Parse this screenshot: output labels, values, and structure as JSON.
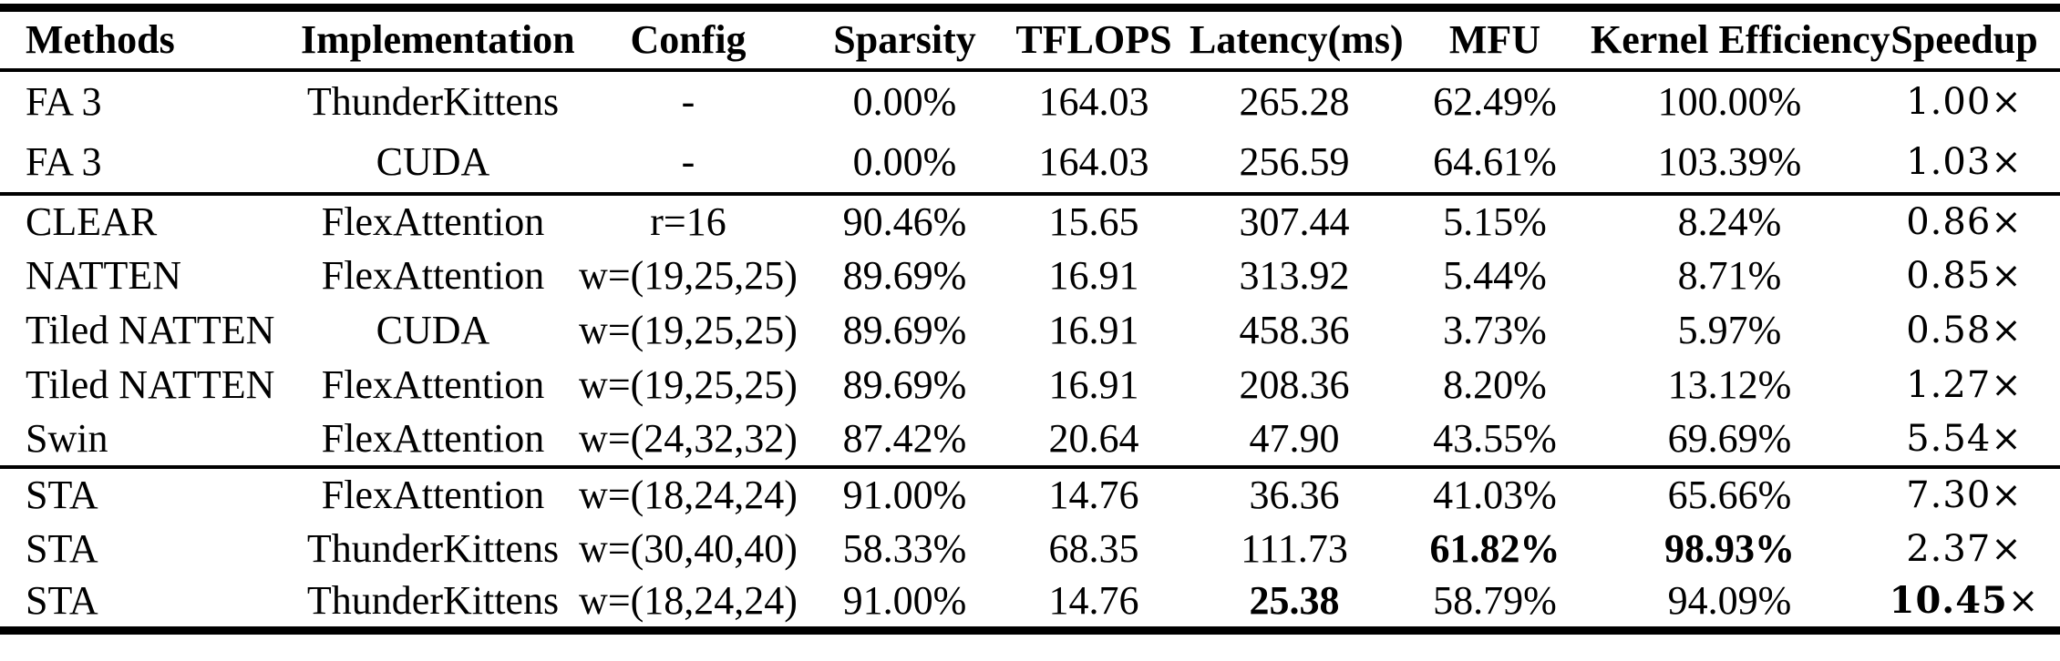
{
  "table": {
    "columns": [
      {
        "label": "Methods",
        "align": "left"
      },
      {
        "label": "Implementation",
        "align": "center"
      },
      {
        "label": "Config",
        "align": "center"
      },
      {
        "label": "Sparsity",
        "align": "center"
      },
      {
        "label": "TFLOPS",
        "align": "center"
      },
      {
        "label": "Latency(ms)",
        "align": "center"
      },
      {
        "label": "MFU",
        "align": "center"
      },
      {
        "label": "Kernel Efficiency",
        "align": "center"
      },
      {
        "label": "Speedup",
        "align": "center"
      }
    ],
    "groups": [
      {
        "rows": [
          [
            "FA 3",
            "ThunderKittens",
            "-",
            "0.00%",
            "164.03",
            "265.28",
            "62.49%",
            "100.00%",
            "1.00×"
          ],
          [
            "FA 3",
            "CUDA",
            "-",
            "0.00%",
            "164.03",
            "256.59",
            "64.61%",
            "103.39%",
            "1.03×"
          ]
        ]
      },
      {
        "rows": [
          [
            "CLEAR",
            "FlexAttention",
            "r=16",
            "90.46%",
            "15.65",
            "307.44",
            "5.15%",
            "8.24%",
            "0.86×"
          ],
          [
            "NATTEN",
            "FlexAttention",
            "w=(19,25,25)",
            "89.69%",
            "16.91",
            "313.92",
            "5.44%",
            "8.71%",
            "0.85×"
          ],
          [
            "Tiled NATTEN",
            "CUDA",
            "w=(19,25,25)",
            "89.69%",
            "16.91",
            "458.36",
            "3.73%",
            "5.97%",
            "0.58×"
          ],
          [
            "Tiled NATTEN",
            "FlexAttention",
            "w=(19,25,25)",
            "89.69%",
            "16.91",
            "208.36",
            "8.20%",
            "13.12%",
            "1.27×"
          ],
          [
            "Swin",
            "FlexAttention",
            "w=(24,32,32)",
            "87.42%",
            "20.64",
            "47.90",
            "43.55%",
            "69.69%",
            "5.54×"
          ]
        ]
      },
      {
        "rows": [
          [
            "STA",
            "FlexAttention",
            "w=(18,24,24)",
            "91.00%",
            "14.76",
            "36.36",
            "41.03%",
            "65.66%",
            "7.30×"
          ],
          [
            "STA",
            "ThunderKittens",
            "w=(30,40,40)",
            "58.33%",
            "68.35",
            "111.73",
            {
              "t": "61.82%",
              "b": true
            },
            {
              "t": "98.93%",
              "b": true
            },
            "2.37×"
          ],
          [
            "STA",
            "ThunderKittens",
            "w=(18,24,24)",
            "91.00%",
            "14.76",
            {
              "t": "25.38",
              "b": true
            },
            "58.79%",
            "94.09%",
            [
              {
                "t": "10.45",
                "b": true
              },
              {
                "t": "×"
              }
            ]
          ]
        ]
      }
    ]
  }
}
